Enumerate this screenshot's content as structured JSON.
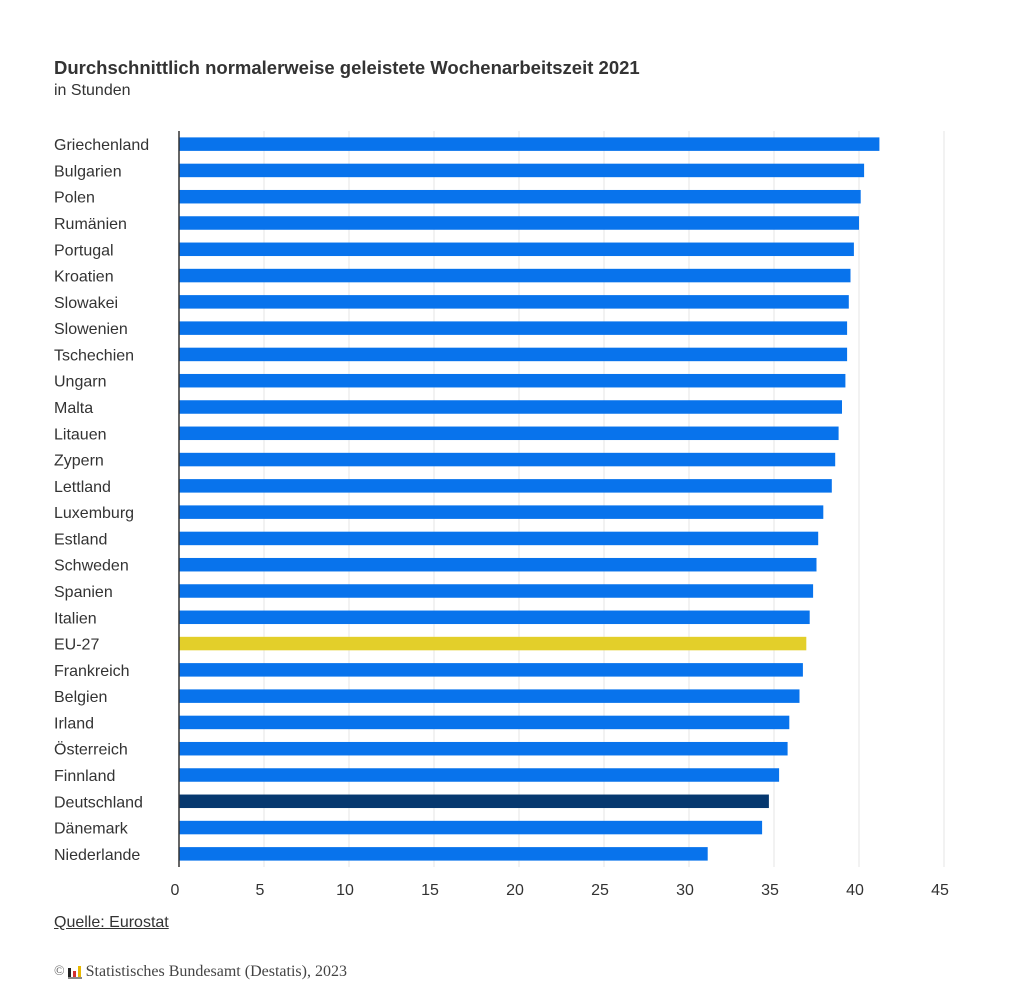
{
  "header": {
    "title": "Durchschnittlich normalerweise geleistete Wochenarbeitszeit 2021",
    "subtitle": "in Stunden"
  },
  "footer": {
    "source": "Quelle: Eurostat",
    "copyright_symbol": "©",
    "copyright_text": "Statistisches Bundesamt (Destatis), 2023",
    "logo_icon": "destatis-logo-icon"
  },
  "colors": {
    "default_bar": "#0873ec",
    "eu_bar": "#e3cf2a",
    "germany_bar": "#06386f",
    "gridline": "#e6e6e6",
    "axis": "#333333"
  },
  "chart_data": {
    "type": "bar",
    "orientation": "horizontal",
    "title": "Durchschnittlich normalerweise geleistete Wochenarbeitszeit 2021",
    "subtitle": "in Stunden",
    "xlabel": "",
    "ylabel": "",
    "xlim": [
      0,
      45
    ],
    "xticks": [
      0,
      5,
      10,
      15,
      20,
      25,
      30,
      35,
      40,
      45
    ],
    "grid": true,
    "legend": "none",
    "categories": [
      "Griechenland",
      "Bulgarien",
      "Polen",
      "Rumänien",
      "Portugal",
      "Kroatien",
      "Slowakei",
      "Slowenien",
      "Tschechien",
      "Ungarn",
      "Malta",
      "Litauen",
      "Zypern",
      "Lettland",
      "Luxemburg",
      "Estland",
      "Schweden",
      "Spanien",
      "Italien",
      "EU-27",
      "Frankreich",
      "Belgien",
      "Irland",
      "Österreich",
      "Finnland",
      "Deutschland",
      "Dänemark",
      "Niederlande"
    ],
    "values": [
      41.2,
      40.3,
      40.1,
      40.0,
      39.7,
      39.5,
      39.4,
      39.3,
      39.3,
      39.2,
      39.0,
      38.8,
      38.6,
      38.4,
      37.9,
      37.6,
      37.5,
      37.3,
      37.1,
      36.9,
      36.7,
      36.5,
      35.9,
      35.8,
      35.3,
      34.7,
      34.3,
      31.1
    ],
    "highlight": {
      "EU-27": "eu_bar",
      "Deutschland": "germany_bar"
    }
  }
}
